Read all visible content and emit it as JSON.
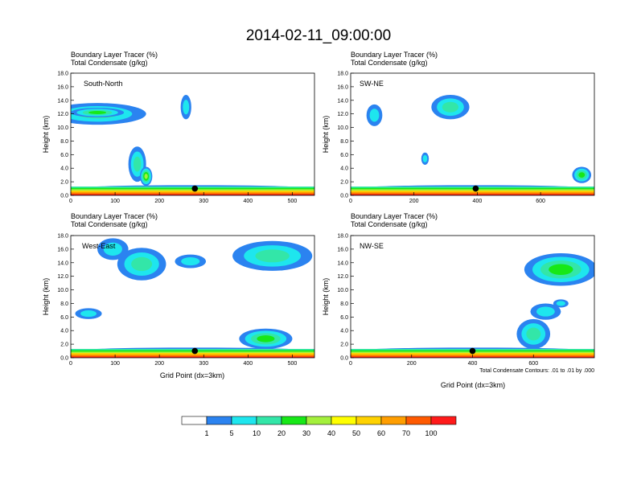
{
  "figure_title": "2014-02-11_09:00:00",
  "field_titles": [
    "Boundary Layer Tracer   (%)",
    "Total Condensate   (g/kg)"
  ],
  "x_label": "Grid Point (dx=3km)",
  "y_label": "Height (km)",
  "contour_note": "Total Condensate Contours: .01 to .01 by .000",
  "colorbar": {
    "colors": [
      "#ffffff",
      "#2b83f0",
      "#1ee6ee",
      "#33e6a8",
      "#17e817",
      "#a4f03c",
      "#ffff00",
      "#ffd200",
      "#ff9e00",
      "#ff5a00",
      "#ff1a1a"
    ],
    "labels": [
      "1",
      "5",
      "10",
      "20",
      "30",
      "40",
      "50",
      "60",
      "70",
      "100"
    ]
  },
  "chart_data": [
    {
      "type": "contour",
      "label": "South-North",
      "xlim": [
        0,
        550
      ],
      "ylim": [
        0,
        18
      ],
      "xticks": [
        "0",
        "100",
        "200",
        "300",
        "400",
        "500"
      ],
      "yticks": [
        "0.0",
        "2.0",
        "4.0",
        "6.0",
        "8.0",
        "10.0",
        "12.0",
        "14.0",
        "16.0",
        "18.0"
      ],
      "marker": {
        "x": 280,
        "y": 1.0
      },
      "blobs": [
        {
          "x": 60,
          "y": 12.0,
          "w": 110,
          "h": 1.6,
          "level": 3
        },
        {
          "x": 150,
          "y": 4.6,
          "w": 20,
          "h": 2.6,
          "level": 3
        },
        {
          "x": 170,
          "y": 2.8,
          "w": 14,
          "h": 1.4,
          "level": 5
        },
        {
          "x": 260,
          "y": 13.0,
          "w": 12,
          "h": 1.8,
          "level": 2
        },
        {
          "x": 60,
          "y": 12.2,
          "w": 60,
          "h": 0.7,
          "level": 4
        },
        {
          "x": 275,
          "y": 1.0,
          "w": 275,
          "h": 0.5,
          "level": 2
        }
      ]
    },
    {
      "type": "contour",
      "label": "SW-NE",
      "xlim": [
        0,
        770
      ],
      "ylim": [
        0,
        18
      ],
      "xticks": [
        "0",
        "200",
        "400",
        "600"
      ],
      "yticks": [
        "0.0",
        "2.0",
        "4.0",
        "6.0",
        "8.0",
        "10.0",
        "12.0",
        "14.0",
        "16.0",
        "18.0"
      ],
      "marker": {
        "x": 395,
        "y": 1.0
      },
      "blobs": [
        {
          "x": 75,
          "y": 11.8,
          "w": 25,
          "h": 1.6,
          "level": 2
        },
        {
          "x": 315,
          "y": 13.0,
          "w": 60,
          "h": 1.8,
          "level": 3
        },
        {
          "x": 235,
          "y": 5.4,
          "w": 12,
          "h": 0.9,
          "level": 2
        },
        {
          "x": 730,
          "y": 3.0,
          "w": 30,
          "h": 1.2,
          "level": 4
        },
        {
          "x": 385,
          "y": 1.0,
          "w": 385,
          "h": 0.5,
          "level": 2
        }
      ]
    },
    {
      "type": "contour",
      "label": "West-East",
      "xlim": [
        0,
        550
      ],
      "ylim": [
        0,
        18
      ],
      "xticks": [
        "0",
        "100",
        "200",
        "300",
        "400",
        "500"
      ],
      "yticks": [
        "0.0",
        "2.0",
        "4.0",
        "6.0",
        "8.0",
        "10.0",
        "12.0",
        "14.0",
        "16.0",
        "18.0"
      ],
      "marker": {
        "x": 280,
        "y": 1.0
      },
      "blobs": [
        {
          "x": 160,
          "y": 13.8,
          "w": 55,
          "h": 2.4,
          "level": 3
        },
        {
          "x": 95,
          "y": 16.0,
          "w": 35,
          "h": 1.6,
          "level": 2
        },
        {
          "x": 270,
          "y": 14.2,
          "w": 35,
          "h": 1.0,
          "level": 2
        },
        {
          "x": 455,
          "y": 15.0,
          "w": 90,
          "h": 2.2,
          "level": 3
        },
        {
          "x": 40,
          "y": 6.5,
          "w": 30,
          "h": 0.8,
          "level": 2
        },
        {
          "x": 440,
          "y": 2.8,
          "w": 60,
          "h": 1.5,
          "level": 4
        },
        {
          "x": 275,
          "y": 1.0,
          "w": 275,
          "h": 0.5,
          "level": 2
        }
      ]
    },
    {
      "type": "contour",
      "label": "NW-SE",
      "xlim": [
        0,
        800
      ],
      "ylim": [
        0,
        18
      ],
      "xticks": [
        "0",
        "200",
        "400",
        "600"
      ],
      "yticks": [
        "0.0",
        "2.0",
        "4.0",
        "6.0",
        "8.0",
        "10.0",
        "12.0",
        "14.0",
        "16.0",
        "18.0"
      ],
      "marker": {
        "x": 400,
        "y": 1.0
      },
      "blobs": [
        {
          "x": 690,
          "y": 13.0,
          "w": 120,
          "h": 2.4,
          "level": 4
        },
        {
          "x": 600,
          "y": 3.5,
          "w": 55,
          "h": 2.2,
          "level": 3
        },
        {
          "x": 640,
          "y": 6.8,
          "w": 50,
          "h": 1.2,
          "level": 2
        },
        {
          "x": 690,
          "y": 8.0,
          "w": 25,
          "h": 0.6,
          "level": 2
        },
        {
          "x": 400,
          "y": 1.0,
          "w": 400,
          "h": 0.5,
          "level": 2
        }
      ]
    }
  ]
}
